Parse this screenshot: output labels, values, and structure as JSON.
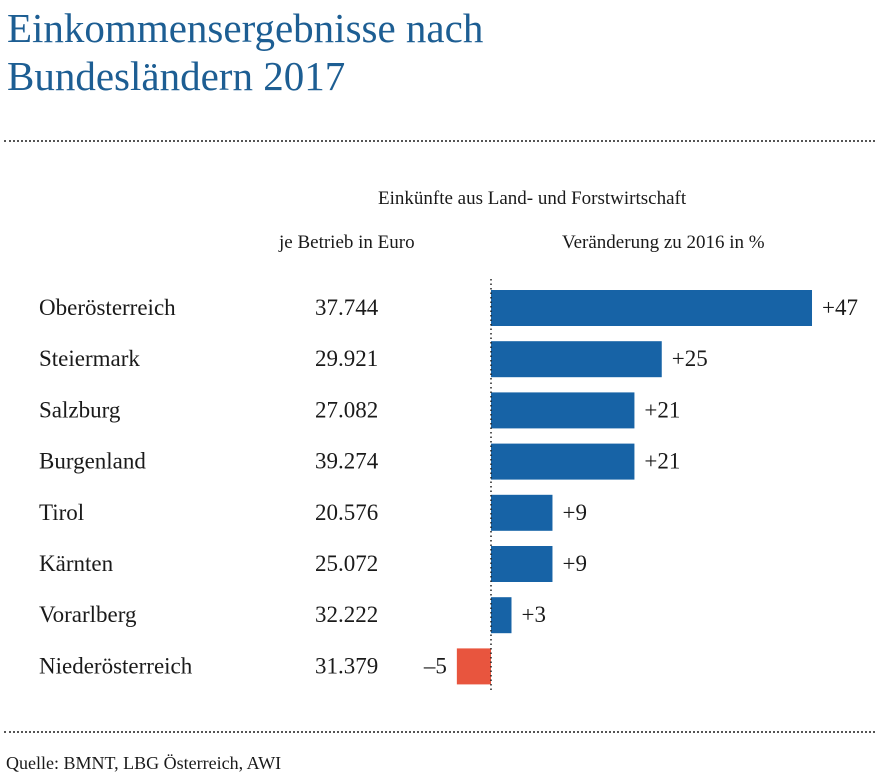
{
  "title_lines": [
    "Einkommensergebnisse nach",
    "Bundesländern 2017"
  ],
  "header": {
    "group": "Einkünfte aus Land- und Forstwirtschaft",
    "col1": "je Betrieb in Euro",
    "col2": "Veränderung zu 2016 in %"
  },
  "source": "Quelle: BMNT, LBG Österreich, AWI",
  "colors": {
    "title": "#1d5e93",
    "positive": "#1763a6",
    "negative": "#e8553e"
  },
  "chart_data": {
    "type": "bar",
    "orientation": "horizontal",
    "categories": [
      "Oberösterreich",
      "Steiermark",
      "Salzburg",
      "Burgenland",
      "Tirol",
      "Kärnten",
      "Vorarlberg",
      "Niederösterreich"
    ],
    "income_per_farm": [
      "37.744",
      "29.921",
      "27.082",
      "39.274",
      "20.576",
      "25.072",
      "32.222",
      "31.379"
    ],
    "values": [
      47,
      25,
      21,
      21,
      9,
      9,
      3,
      -5
    ],
    "value_labels": [
      "+47",
      "+25",
      "+21",
      "+21",
      "+9",
      "+9",
      "+3",
      "–5"
    ],
    "zero_line": "dotted"
  }
}
